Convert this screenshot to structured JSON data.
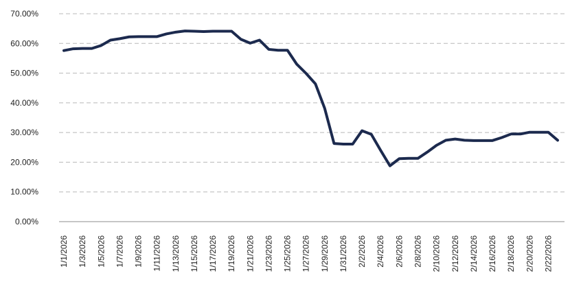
{
  "chart_data": {
    "type": "line",
    "title": "",
    "xlabel": "",
    "ylabel": "",
    "ylim": [
      0,
      70
    ],
    "y_tick_values": [
      0,
      10,
      20,
      30,
      40,
      50,
      60,
      70
    ],
    "y_tick_labels": [
      "0.00%",
      "10.00%",
      "20.00%",
      "30.00%",
      "40.00%",
      "50.00%",
      "60.00%",
      "70.00%"
    ],
    "grid": true,
    "legend": "none",
    "x": [
      "1/1/2026",
      "1/2/2026",
      "1/3/2026",
      "1/4/2026",
      "1/5/2026",
      "1/6/2026",
      "1/7/2026",
      "1/8/2026",
      "1/9/2026",
      "1/10/2026",
      "1/11/2026",
      "1/12/2026",
      "1/13/2026",
      "1/14/2026",
      "1/15/2026",
      "1/16/2026",
      "1/17/2026",
      "1/18/2026",
      "1/19/2026",
      "1/20/2026",
      "1/21/2026",
      "1/22/2026",
      "1/23/2026",
      "1/24/2026",
      "1/25/2026",
      "1/26/2026",
      "1/27/2026",
      "1/28/2026",
      "1/29/2026",
      "1/30/2026",
      "1/31/2026",
      "2/1/2026",
      "2/2/2026",
      "2/3/2026",
      "2/4/2026",
      "2/5/2026",
      "2/6/2026",
      "2/7/2026",
      "2/8/2026",
      "2/9/2026",
      "2/10/2026",
      "2/11/2026",
      "2/12/2026",
      "2/13/2026",
      "2/14/2026",
      "2/15/2026",
      "2/16/2026",
      "2/17/2026",
      "2/18/2026",
      "2/19/2026",
      "2/20/2026",
      "2/21/2026",
      "2/22/2026",
      "2/23/2026"
    ],
    "x_tick_labels": [
      "1/1/2026",
      "1/3/2026",
      "1/5/2026",
      "1/7/2026",
      "1/9/2026",
      "1/11/2026",
      "1/13/2026",
      "1/15/2026",
      "1/17/2026",
      "1/19/2026",
      "1/21/2026",
      "1/23/2026",
      "1/25/2026",
      "1/27/2026",
      "1/29/2026",
      "1/31/2026",
      "2/2/2026",
      "2/4/2026",
      "2/6/2026",
      "2/8/2026",
      "2/10/2026",
      "2/12/2026",
      "2/14/2026",
      "2/16/2026",
      "2/18/2026",
      "2/20/2026",
      "2/22/2026"
    ],
    "series": [
      {
        "color": "#1c2a4e",
        "values": [
          57.6,
          58.2,
          58.3,
          58.3,
          59.3,
          61.1,
          61.6,
          62.2,
          62.3,
          62.3,
          62.3,
          63.2,
          63.8,
          64.2,
          64.1,
          64.0,
          64.1,
          64.1,
          64.1,
          61.4,
          60.1,
          61.1,
          58.0,
          57.7,
          57.7,
          53.0,
          49.9,
          46.4,
          38.1,
          26.3,
          26.1,
          26.1,
          30.6,
          29.4,
          24.0,
          18.8,
          21.2,
          21.3,
          21.3,
          23.4,
          25.7,
          27.4,
          27.8,
          27.4,
          27.3,
          27.3,
          27.3,
          28.3,
          29.5,
          29.5,
          30.1,
          30.1,
          30.1,
          27.4
        ]
      }
    ]
  }
}
